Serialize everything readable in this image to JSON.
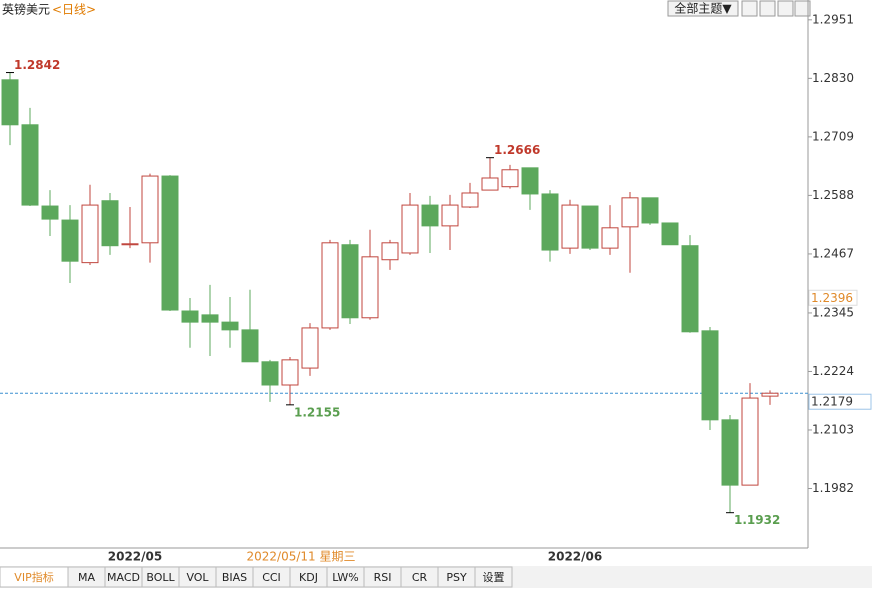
{
  "header": {
    "symbol": "英镑美元",
    "period": "<日线>",
    "theme_button": "全部主题▼"
  },
  "chart_data": {
    "type": "candlestick",
    "categories": [
      null,
      null,
      null,
      null,
      null,
      null,
      "2022/05",
      null,
      null,
      null,
      null,
      null,
      null,
      null,
      null,
      null,
      null,
      null,
      null,
      null,
      null,
      null,
      null,
      null,
      null,
      null,
      null,
      null,
      "2022/06",
      null,
      null,
      null,
      null,
      null,
      null,
      null,
      null,
      null,
      null
    ],
    "open": [
      1.2827,
      1.2734,
      1.2566,
      1.2537,
      1.2449,
      1.2577,
      1.2486,
      1.249,
      1.2628,
      1.2349,
      1.2341,
      1.2326,
      1.231,
      1.2244,
      1.2196,
      1.2231,
      1.2314,
      1.2486,
      1.2335,
      1.2455,
      1.2469,
      1.2568,
      1.2525,
      1.2564,
      1.2599,
      1.2606,
      1.2645,
      1.2591,
      1.2479,
      1.2566,
      1.2479,
      1.2523,
      1.2583,
      1.2531,
      1.2484,
      1.2308,
      1.2124,
      1.1989,
      1.2173
    ],
    "high": [
      1.2842,
      1.2769,
      1.2599,
      1.2568,
      1.261,
      1.2593,
      1.2564,
      1.2633,
      1.263,
      1.2376,
      1.2403,
      1.2378,
      1.2393,
      1.2248,
      1.2254,
      1.2324,
      1.2496,
      1.2496,
      1.2517,
      1.2496,
      1.2593,
      1.2587,
      1.2589,
      1.2614,
      1.2666,
      1.2651,
      1.2645,
      1.2599,
      1.2579,
      1.2566,
      1.2568,
      1.2595,
      1.2583,
      1.2531,
      1.2506,
      1.2316,
      1.2134,
      1.22,
      1.2185
    ],
    "low": [
      1.2692,
      1.2566,
      1.2504,
      1.2407,
      1.2444,
      1.2465,
      1.2479,
      1.2449,
      1.2349,
      1.2273,
      1.2256,
      1.2273,
      1.2244,
      1.2161,
      1.2155,
      1.2215,
      1.231,
      1.2322,
      1.2331,
      1.2434,
      1.2465,
      1.2469,
      1.2475,
      1.2562,
      1.2599,
      1.2602,
      1.2558,
      1.2451,
      1.2467,
      1.2475,
      1.2465,
      1.2428,
      1.2527,
      1.2486,
      1.2304,
      1.2103,
      1.1932,
      1.1989,
      1.2155
    ],
    "close": [
      1.2734,
      1.2568,
      1.2539,
      1.2452,
      1.2568,
      1.2484,
      1.2488,
      1.2628,
      1.2351,
      1.2326,
      1.2326,
      1.231,
      1.2244,
      1.2196,
      1.2248,
      1.2314,
      1.249,
      1.2335,
      1.2461,
      1.249,
      1.2568,
      1.2525,
      1.2568,
      1.2593,
      1.2624,
      1.2641,
      1.2591,
      1.2475,
      1.2568,
      1.2479,
      1.2521,
      1.2583,
      1.2531,
      1.2486,
      1.2306,
      1.2124,
      1.1989,
      1.2169,
      1.2179
    ],
    "up_color": "#c0463e",
    "down_color": "#5ca85c",
    "ylim": [
      1.1859,
      1.2992
    ],
    "yticks": [
      1.1982,
      1.2103,
      1.2224,
      1.2345,
      1.2467,
      1.2588,
      1.2709,
      {
        "value": 1.283,
        "label": "1.2830"
      },
      1.2951
    ],
    "annotations": [
      {
        "label": "1.2842",
        "value": 1.2842,
        "color": "#c0392b"
      },
      {
        "label": "1.2666",
        "value": 1.2666,
        "color": "#c0392b"
      },
      {
        "label": "1.2155",
        "value": 1.2155,
        "color": "#5a9e4f"
      },
      {
        "label": "1.1932",
        "value": 1.1932,
        "color": "#5a9e4f"
      }
    ],
    "last_price": {
      "value": 1.2179,
      "label": "1.2179"
    },
    "marker_price": {
      "value": 1.2396,
      "label": "1.2396"
    },
    "cursor_label": "2022/05/11 星期三"
  },
  "tabs": [
    "VIP指标",
    "MA",
    "MACD",
    "BOLL",
    "VOL",
    "BIAS",
    "CCI",
    "KDJ",
    "LW%",
    "RSI",
    "CR",
    "PSY",
    "设置"
  ]
}
